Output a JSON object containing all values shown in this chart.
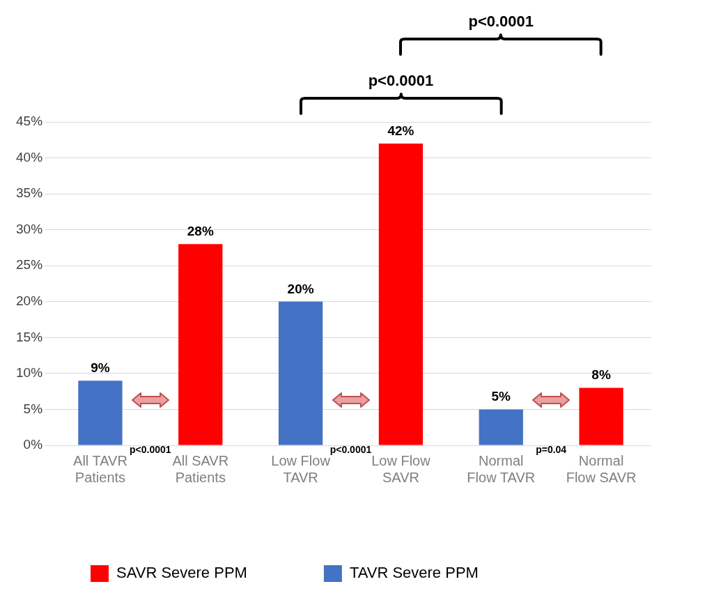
{
  "chart_data": {
    "type": "bar",
    "categories": [
      "All TAVR Patients",
      "All SAVR Patients",
      "Low Flow TAVR",
      "Low Flow SAVR",
      "Normal Flow TAVR",
      "Normal Flow SAVR"
    ],
    "series": [
      {
        "name": "SAVR Severe PPM",
        "color": "#ff0000",
        "values": [
          null,
          28,
          null,
          42,
          null,
          8
        ],
        "value_labels": [
          null,
          "28%",
          null,
          "42%",
          null,
          "8%"
        ]
      },
      {
        "name": "TAVR Severe PPM",
        "color": "#4472c4",
        "values": [
          9,
          null,
          20,
          null,
          5,
          null
        ],
        "value_labels": [
          "9%",
          null,
          "20%",
          null,
          "5%",
          null
        ]
      }
    ],
    "ylim": [
      0,
      45
    ],
    "yticks": [
      {
        "value": 0,
        "label": "0%"
      },
      {
        "value": 5,
        "label": "5%"
      },
      {
        "value": 10,
        "label": "10%"
      },
      {
        "value": 15,
        "label": "15%"
      },
      {
        "value": 20,
        "label": "20%"
      },
      {
        "value": 25,
        "label": "25%"
      },
      {
        "value": 30,
        "label": "30%"
      },
      {
        "value": 35,
        "label": "35%"
      },
      {
        "value": 40,
        "label": "40%"
      },
      {
        "value": 45,
        "label": "45%"
      }
    ],
    "grid": "y",
    "legend": "bottom left",
    "annotations": [
      "p<0.0001",
      "p<0.0001",
      "p=0.04",
      "p<0.0001",
      "p<0.0001"
    ]
  }
}
